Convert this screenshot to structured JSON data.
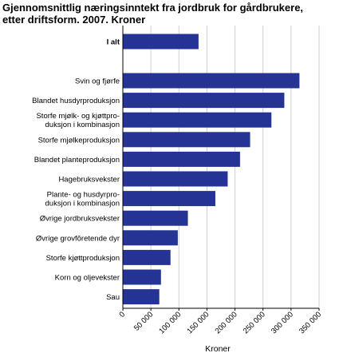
{
  "chart_data": {
    "type": "bar",
    "orientation": "horizontal",
    "title_lines": [
      "Gjennomsnittlig næringsinntekt fra jordbruk for gårdbrukere,",
      "etter driftsform. 2007. Kroner"
    ],
    "xlabel": "Kroner",
    "xlim": [
      0,
      350000
    ],
    "x_ticks": [
      "0",
      "50 000",
      "100 000",
      "150 000",
      "200 000",
      "250 000",
      "300 000",
      "350 000"
    ],
    "grid": true,
    "bar_color": "#253494",
    "categories": [
      {
        "label": [
          "I alt"
        ],
        "bold": true
      },
      {
        "label": [
          "Svin og fjørfe"
        ]
      },
      {
        "label": [
          "Blandet husdyrproduksjon"
        ]
      },
      {
        "label": [
          "Storfe mjølk- og kjøttpro-",
          "duksjon i kombinasjon"
        ]
      },
      {
        "label": [
          "Storfe mjølkeproduksjon"
        ]
      },
      {
        "label": [
          "Blandet planteproduksjon"
        ]
      },
      {
        "label": [
          "Hagebruksvekster"
        ]
      },
      {
        "label": [
          "Plante- og husdyrpro-",
          "duksjon i kombinasjon"
        ]
      },
      {
        "label": [
          "Øvrige jordbruksvekster"
        ]
      },
      {
        "label": [
          "Øvrige grovfôretende dyr"
        ]
      },
      {
        "label": [
          "Storfe kjøttproduksjon"
        ]
      },
      {
        "label": [
          "Korn og oljevekster"
        ]
      },
      {
        "label": [
          "Sau"
        ]
      }
    ],
    "values": [
      135000,
      315000,
      288000,
      265000,
      227000,
      209000,
      187000,
      165000,
      116000,
      98000,
      85000,
      68000,
      65000
    ]
  }
}
